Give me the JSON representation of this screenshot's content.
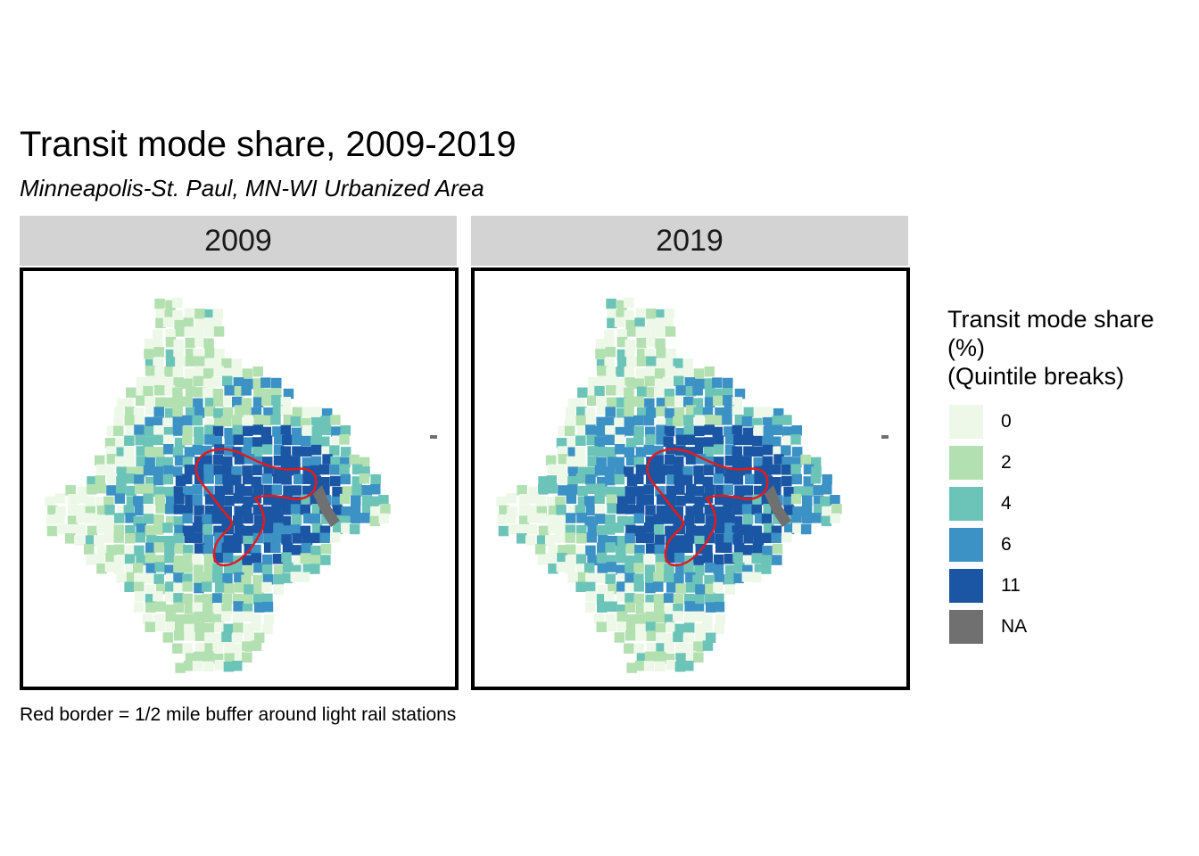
{
  "title": "Transit mode share, 2009-2019",
  "subtitle": "Minneapolis-St. Paul, MN-WI Urbanized Area",
  "panels": [
    {
      "label": "2009",
      "buffer_color": "#e31a1c"
    },
    {
      "label": "2019",
      "buffer_color": "#e31a1c"
    }
  ],
  "legend": {
    "title_lines": [
      "Transit mode share",
      "(%)",
      "(Quintile breaks)"
    ],
    "items": [
      {
        "label": "0",
        "color": "#edf8e9"
      },
      {
        "label": "2",
        "color": "#b3e0b0"
      },
      {
        "label": "4",
        "color": "#6cc4b8"
      },
      {
        "label": "6",
        "color": "#3c91c5"
      },
      {
        "label": "11",
        "color": "#1a56a3"
      },
      {
        "label": "NA",
        "color": "#707070"
      }
    ]
  },
  "caption": "Red border = 1/2 mile buffer around light rail stations"
}
